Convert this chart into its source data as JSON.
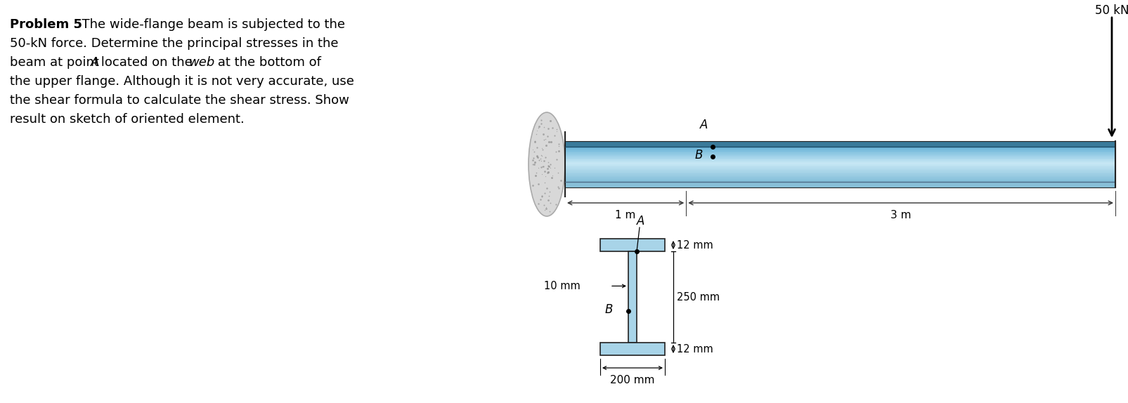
{
  "force_label": "50 kN",
  "dim_1m": "1 m",
  "dim_3m": "3 m",
  "label_A_beam": "A",
  "label_B_beam": "B",
  "label_A_section": "A",
  "label_B_section": "B",
  "dim_12mm_top": "12 mm",
  "dim_250mm": "250 mm",
  "dim_12mm_bot": "12 mm",
  "dim_200mm": "200 mm",
  "dim_10mm": "10 mm",
  "beam_top_color": "#2a6080",
  "beam_mid_top_color": "#6ab4d8",
  "beam_mid_light_color": "#c8e8f5",
  "beam_mid_bot_color": "#a0cce0",
  "beam_bot_color": "#88c0d8",
  "beam_outline": "#222222",
  "wall_face_color": "#d8d8d8",
  "wall_dot_color": "#888888",
  "section_color": "#a8d4e8",
  "section_outline": "#222222",
  "bg_color": "#ffffff",
  "text_color": "#000000",
  "fontsize_main": 13,
  "fontsize_label": 12,
  "fontsize_dim": 11,
  "fontsize_small": 10.5
}
